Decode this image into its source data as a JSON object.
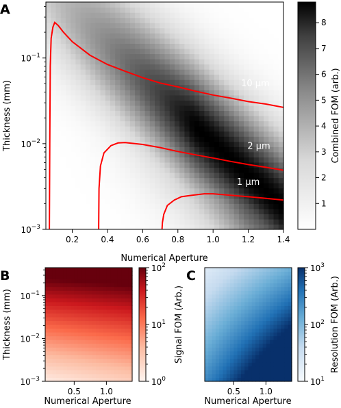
{
  "panels": {
    "a": {
      "letter": "A"
    },
    "b": {
      "letter": "B"
    },
    "c": {
      "letter": "C"
    }
  },
  "chart_data": [
    {
      "id": "A",
      "type": "heatmap",
      "xlabel": "Numerical Aperture",
      "ylabel": "Thickness (mm)",
      "xlim": [
        0.05,
        1.4
      ],
      "ylim": [
        0.001,
        0.45
      ],
      "yscale": "log",
      "xticks": [
        0.2,
        0.4,
        0.6,
        0.8,
        1.0,
        1.2,
        1.4
      ],
      "xtick_labels": [
        "0.2",
        "0.4",
        "0.6",
        "0.8",
        "1.0",
        "1.2",
        "1.4"
      ],
      "yticks": [
        0.001,
        0.01,
        0.1
      ],
      "colormap": "Greys",
      "colorbar": {
        "label": "Combined FOM (arb.)",
        "range": [
          0,
          8.8
        ],
        "ticks": [
          1,
          2,
          3,
          4,
          5,
          6,
          7,
          8
        ],
        "tick_labels": [
          "1",
          "2",
          "3",
          "4",
          "5",
          "6",
          "7",
          "8"
        ]
      },
      "contours": [
        {
          "label": "10 μm",
          "color": "#ff0000",
          "x": [
            0.07,
            0.072,
            0.075,
            0.08,
            0.09,
            0.1,
            0.12,
            0.15,
            0.2,
            0.3,
            0.4,
            0.5,
            0.6,
            0.7,
            0.8,
            0.9,
            1.0,
            1.1,
            1.2,
            1.3,
            1.4
          ],
          "y": [
            0.001,
            0.01,
            0.08,
            0.17,
            0.23,
            0.26,
            0.24,
            0.2,
            0.155,
            0.108,
            0.084,
            0.07,
            0.059,
            0.051,
            0.046,
            0.041,
            0.037,
            0.034,
            0.031,
            0.029,
            0.0265
          ]
        },
        {
          "label": "2 μm",
          "color": "#ff0000",
          "x": [
            0.35,
            0.352,
            0.36,
            0.38,
            0.42,
            0.46,
            0.5,
            0.6,
            0.7,
            0.8,
            0.9,
            1.0,
            1.1,
            1.2,
            1.3,
            1.4
          ],
          "y": [
            0.001,
            0.003,
            0.0055,
            0.0078,
            0.0095,
            0.0102,
            0.0103,
            0.0098,
            0.009,
            0.0081,
            0.0074,
            0.0068,
            0.0062,
            0.0057,
            0.0053,
            0.0049
          ]
        },
        {
          "label": "1 μm",
          "color": "#ff0000",
          "x": [
            0.71,
            0.712,
            0.72,
            0.74,
            0.78,
            0.82,
            0.88,
            0.95,
            1.0,
            1.1,
            1.2,
            1.3,
            1.4
          ],
          "y": [
            0.001,
            0.0012,
            0.0015,
            0.0019,
            0.0022,
            0.0024,
            0.0025,
            0.0026,
            0.0026,
            0.0025,
            0.0024,
            0.0023,
            0.0022
          ]
        }
      ]
    },
    {
      "id": "B",
      "type": "heatmap",
      "xlabel": "Numerical Aperture",
      "ylabel": "Thickness (mm)",
      "xlim": [
        0.05,
        1.4
      ],
      "ylim": [
        0.001,
        0.45
      ],
      "yscale": "log",
      "xticks": [
        0.5,
        1.0
      ],
      "xtick_labels": [
        "0.5",
        "1.0"
      ],
      "yticks": [
        0.001,
        0.01,
        0.1
      ],
      "colormap": "Reds",
      "colorbar": {
        "label": "Signal FOM (Arb.)",
        "scale": "log",
        "range": [
          1,
          100
        ],
        "ticks": [
          1,
          10,
          100
        ]
      }
    },
    {
      "id": "C",
      "type": "heatmap",
      "xlabel": "Numerical Aperture",
      "xlim": [
        0.05,
        1.4
      ],
      "ylim": [
        0.001,
        0.45
      ],
      "yscale": "log",
      "xticks": [
        0.5,
        1.0
      ],
      "xtick_labels": [
        "0.5",
        "1.0"
      ],
      "colormap": "Blues",
      "colorbar": {
        "label": "Resolution FOM (Arb.)",
        "scale": "log",
        "range": [
          10,
          1000
        ],
        "ticks": [
          10,
          100,
          1000
        ]
      }
    }
  ]
}
